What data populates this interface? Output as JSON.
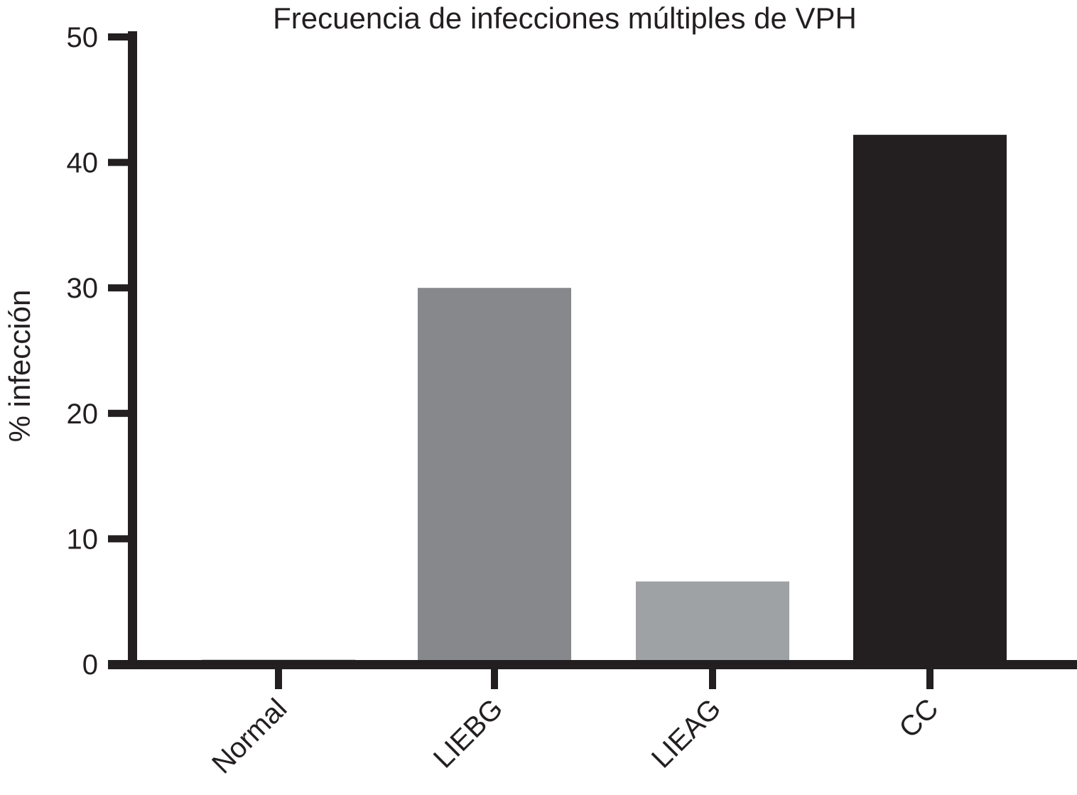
{
  "chart_data": {
    "type": "bar",
    "title": "Frecuencia de infecciones múltiples de VPH",
    "xlabel": "",
    "ylabel": "% infección",
    "ylim": [
      0,
      50
    ],
    "yticks": [
      "0",
      "10",
      "20",
      "30",
      "40",
      "50"
    ],
    "categories": [
      "Normal",
      "LIEBG",
      "LIEAG",
      "CC"
    ],
    "values": [
      0,
      30,
      6.6,
      42.2
    ],
    "colors": [
      "#c8c9cb",
      "#87888c",
      "#9fa2a5",
      "#231f20"
    ],
    "axis_color": "#231f20",
    "grid": false,
    "legend": "none"
  }
}
